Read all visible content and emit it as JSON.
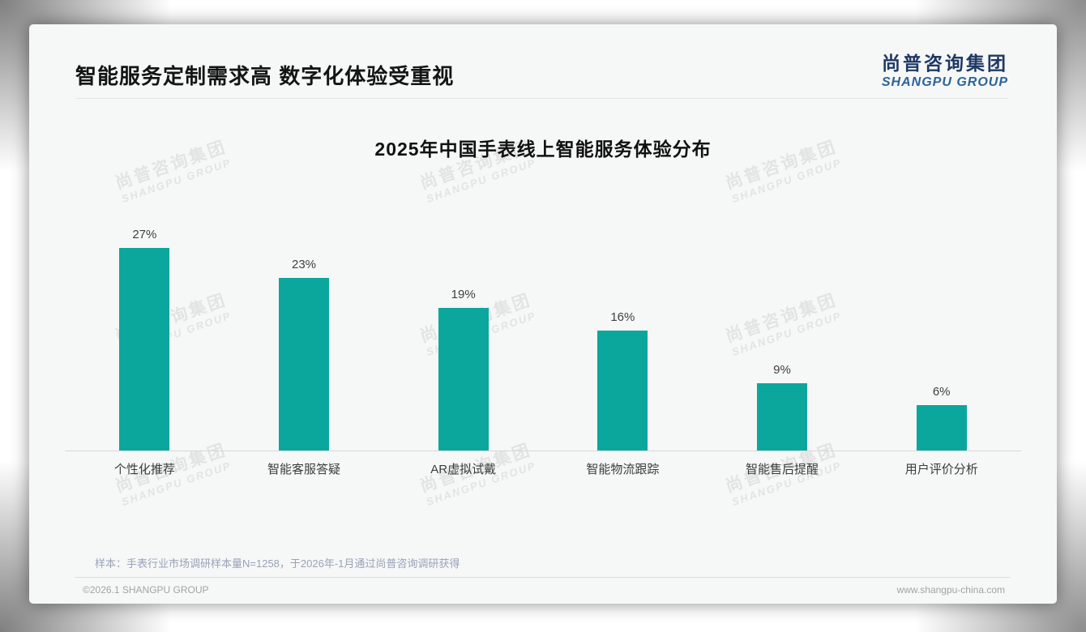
{
  "slide": {
    "title": "智能服务定制需求高 数字化体验受重视",
    "logo": {
      "cn": "尚普咨询集团",
      "en": "SHANGPU GROUP"
    },
    "watermark": {
      "cn": "尚普咨询集团",
      "en": "SHANGPU GROUP"
    },
    "note": "样本：手表行业市场调研样本量N=1258，于2026年-1月通过尚普咨询调研获得",
    "footer": {
      "left": "©2026.1 SHANGPU GROUP",
      "right": "www.shangpu-china.com"
    }
  },
  "chart_data": {
    "type": "bar",
    "title": "2025年中国手表线上智能服务体验分布",
    "categories": [
      "个性化推荐",
      "智能客服答疑",
      "AR虚拟试戴",
      "智能物流跟踪",
      "智能售后提醒",
      "用户评价分析"
    ],
    "values": [
      27,
      23,
      19,
      16,
      9,
      6
    ],
    "value_labels": [
      "27%",
      "23%",
      "19%",
      "16%",
      "9%",
      "6%"
    ],
    "unit": "%",
    "ylim": [
      0,
      30
    ],
    "grid": false,
    "legend": null,
    "bar_color": "#0ba79d",
    "axis_line_color": "#d9d9d9"
  },
  "colors": {
    "accent_teal": "#0ba79d",
    "logo_cn": "#1f3864",
    "logo_en": "#2a6399",
    "note_text": "#98a3b8",
    "footer_text": "#a3a3a3"
  }
}
